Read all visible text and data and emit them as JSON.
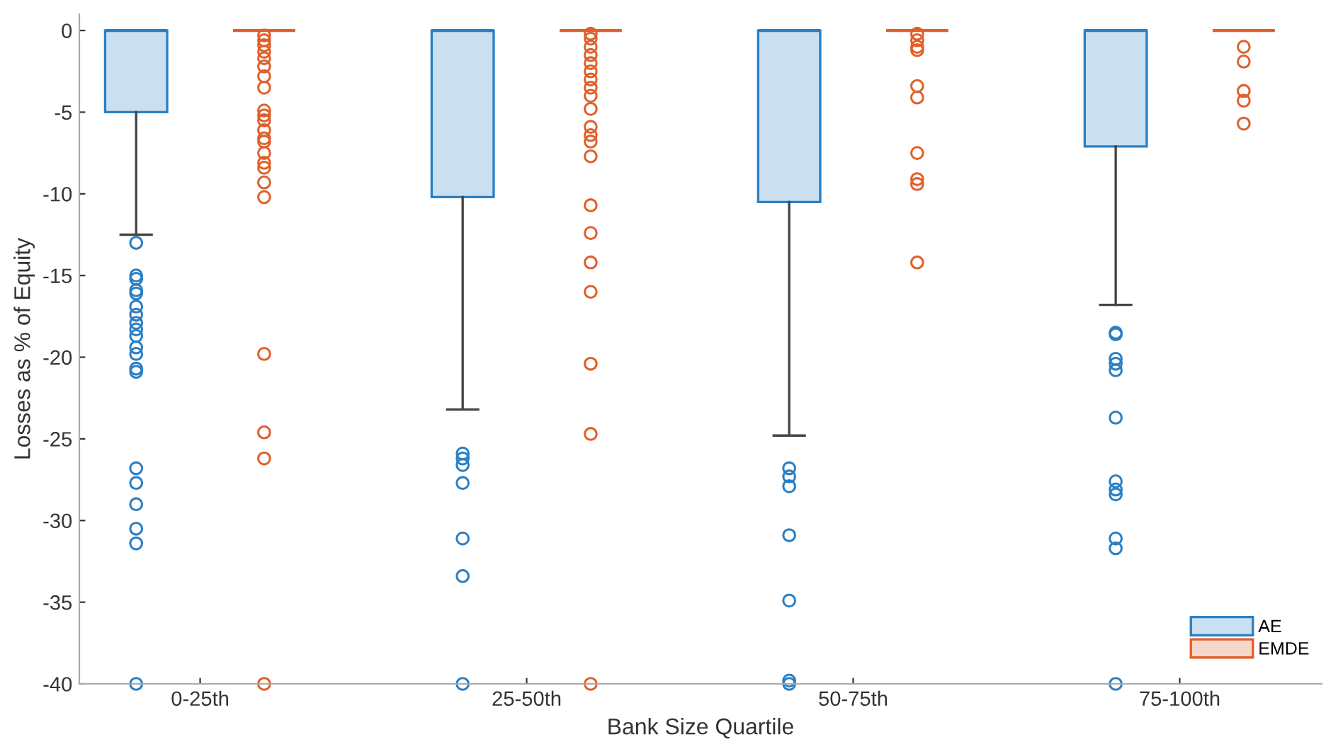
{
  "chart_data": {
    "type": "box",
    "xlabel": "Bank Size Quartile",
    "ylabel": "Losses as % of Equity",
    "categories": [
      "0-25th",
      "25-50th",
      "50-75th",
      "75-100th"
    ],
    "ylim": [
      -40,
      1
    ],
    "yticks": [
      0,
      -5,
      -10,
      -15,
      -20,
      -25,
      -30,
      -35,
      -40
    ],
    "grid": false,
    "legend": "bottom right",
    "series": [
      {
        "name": "AE",
        "color": "#2a7fc4",
        "boxes": [
          {
            "low": -12.5,
            "q1": -5,
            "median": 0,
            "q3": 0,
            "high": 0,
            "outliers": [
              -13.0,
              -15.0,
              -15.2,
              -15.9,
              -16.1,
              -16.9,
              -17.4,
              -17.9,
              -18.3,
              -18.7,
              -19.4,
              -19.8,
              -20.7,
              -20.9,
              -26.8,
              -27.7,
              -29.0,
              -30.5,
              -31.4,
              -40
            ]
          },
          {
            "low": -23.2,
            "q1": -10.2,
            "median": 0,
            "q3": 0,
            "high": 0,
            "outliers": [
              -25.9,
              -26.2,
              -26.6,
              -27.7,
              -31.1,
              -33.4,
              -40
            ]
          },
          {
            "low": -24.8,
            "q1": -10.5,
            "median": 0,
            "q3": 0,
            "high": 0,
            "outliers": [
              -26.8,
              -27.3,
              -27.9,
              -30.9,
              -34.9,
              -39.8,
              -40
            ]
          },
          {
            "low": -16.8,
            "q1": -7.1,
            "median": 0,
            "q3": 0,
            "high": 0,
            "outliers": [
              -18.5,
              -18.6,
              -20.1,
              -20.4,
              -20.8,
              -23.7,
              -27.6,
              -28.1,
              -28.4,
              -31.1,
              -31.7,
              -40
            ]
          }
        ]
      },
      {
        "name": "EMDE",
        "color": "#e0602a",
        "boxes": [
          {
            "low": 0,
            "q1": 0,
            "median": 0,
            "q3": 0,
            "high": 0,
            "outliers": [
              -0.3,
              -0.6,
              -0.9,
              -1.3,
              -1.7,
              -2.2,
              -2.8,
              -3.5,
              -4.9,
              -5.2,
              -5.5,
              -6.1,
              -6.6,
              -6.8,
              -7.5,
              -8.1,
              -8.4,
              -9.3,
              -10.2,
              -19.8,
              -24.6,
              -26.2,
              -40
            ]
          },
          {
            "low": 0,
            "q1": 0,
            "median": 0,
            "q3": 0,
            "high": 0,
            "outliers": [
              -0.2,
              -0.5,
              -1.0,
              -1.5,
              -2.0,
              -2.5,
              -3.0,
              -3.5,
              -4.0,
              -4.8,
              -5.9,
              -6.4,
              -6.8,
              -7.7,
              -10.7,
              -12.4,
              -14.2,
              -16.0,
              -20.4,
              -24.7,
              -40
            ]
          },
          {
            "low": 0,
            "q1": 0,
            "median": 0,
            "q3": 0,
            "high": 0,
            "outliers": [
              -0.2,
              -0.6,
              -1.0,
              -1.2,
              -3.4,
              -4.1,
              -7.5,
              -9.1,
              -9.4,
              -14.2
            ]
          },
          {
            "low": 0,
            "q1": 0,
            "median": 0,
            "q3": 0,
            "high": 0,
            "outliers": [
              -1.0,
              -1.9,
              -3.7,
              -4.3,
              -5.7
            ]
          }
        ]
      }
    ]
  }
}
